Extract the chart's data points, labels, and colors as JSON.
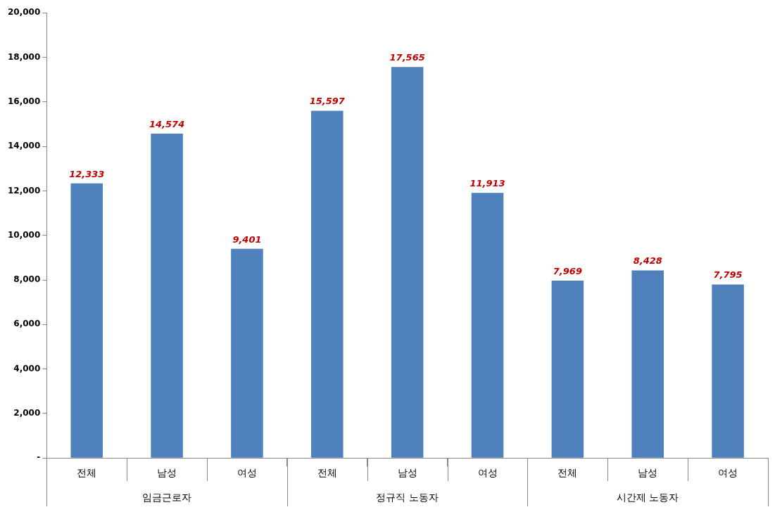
{
  "chart_data": {
    "type": "bar",
    "categories": [
      "전체",
      "남성",
      "여성",
      "전체",
      "남성",
      "여성",
      "전체",
      "남성",
      "여성"
    ],
    "values": [
      12333,
      14574,
      9401,
      15597,
      17565,
      11913,
      7969,
      8428,
      7795
    ],
    "value_labels": [
      "12,333",
      "14,574",
      "9,401",
      "15,597",
      "17,565",
      "11,913",
      "7,969",
      "8,428",
      "7,795"
    ],
    "color": "#4f81bd",
    "ylim": [
      0,
      20000
    ],
    "yticks": [
      {
        "value": 0,
        "label": "-"
      },
      {
        "value": 2000,
        "label": "2,000"
      },
      {
        "value": 4000,
        "label": "4,000"
      },
      {
        "value": 6000,
        "label": "6,000"
      },
      {
        "value": 8000,
        "label": "8,000"
      },
      {
        "value": 10000,
        "label": "10,000"
      },
      {
        "value": 12000,
        "label": "12,000"
      },
      {
        "value": 14000,
        "label": "14,000"
      },
      {
        "value": 16000,
        "label": "16,000"
      },
      {
        "value": 18000,
        "label": "18,000"
      },
      {
        "value": 20000,
        "label": "20,000"
      }
    ],
    "annotations": [
      "임금근로자",
      "정규직 노동자",
      "시간제 노동자"
    ],
    "legend": false
  }
}
